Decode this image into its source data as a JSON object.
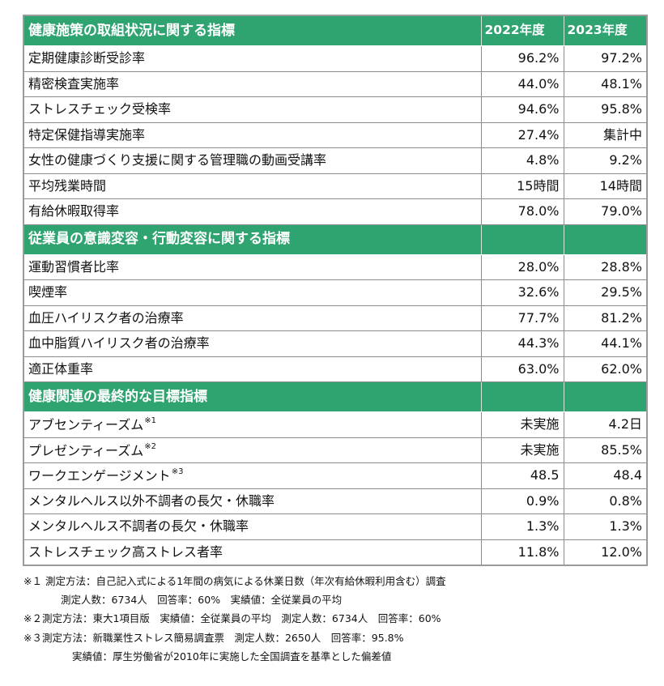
{
  "sections": [
    {
      "title": "健康施策の取組状況に関する指標",
      "col2": "2022年度",
      "col3": "2023年度",
      "rows": [
        {
          "label": "定期健康診断受診率",
          "sup": "",
          "v2022": "96.2%",
          "v2023": "97.2%"
        },
        {
          "label": "精密検査実施率",
          "sup": "",
          "v2022": "44.0%",
          "v2023": "48.1%"
        },
        {
          "label": "ストレスチェック受検率",
          "sup": "",
          "v2022": "94.6%",
          "v2023": "95.8%"
        },
        {
          "label": "特定保健指導実施率",
          "sup": "",
          "v2022": "27.4%",
          "v2023": "集計中"
        },
        {
          "label": "女性の健康づくり支援に関する管理職の動画受講率",
          "sup": "",
          "v2022": "4.8%",
          "v2023": "9.2%"
        },
        {
          "label": "平均残業時間",
          "sup": "",
          "v2022": "15時間",
          "v2023": "14時間"
        },
        {
          "label": "有給休暇取得率",
          "sup": "",
          "v2022": "78.0%",
          "v2023": "79.0%"
        }
      ]
    },
    {
      "title": "従業員の意識変容・行動変容に関する指標",
      "col2": "",
      "col3": "",
      "rows": [
        {
          "label": "運動習慣者比率",
          "sup": "",
          "v2022": "28.0%",
          "v2023": "28.8%"
        },
        {
          "label": "喫煙率",
          "sup": "",
          "v2022": "32.6%",
          "v2023": "29.5%"
        },
        {
          "label": "血圧ハイリスク者の治療率",
          "sup": "",
          "v2022": "77.7%",
          "v2023": "81.2%"
        },
        {
          "label": "血中脂質ハイリスク者の治療率",
          "sup": "",
          "v2022": "44.3%",
          "v2023": "44.1%"
        },
        {
          "label": "適正体重率",
          "sup": "",
          "v2022": "63.0%",
          "v2023": "62.0%"
        }
      ]
    },
    {
      "title": "健康関連の最終的な目標指標",
      "col2": "",
      "col3": "",
      "rows": [
        {
          "label": "アブセンティーズム",
          "sup": "※1",
          "v2022": "未実施",
          "v2023": "4.2日"
        },
        {
          "label": "プレゼンティーズム",
          "sup": "※2",
          "v2022": "未実施",
          "v2023": "85.5%"
        },
        {
          "label": "ワークエンゲージメント",
          "sup": "※3",
          "v2022": "48.5",
          "v2023": "48.4"
        },
        {
          "label": "メンタルヘルス以外不調者の長欠・休職率",
          "sup": "",
          "v2022": "0.9%",
          "v2023": "0.8%"
        },
        {
          "label": "メンタルヘルス不調者の長欠・休職率",
          "sup": "",
          "v2022": "1.3%",
          "v2023": "1.3%"
        },
        {
          "label": "ストレスチェック高ストレス者率",
          "sup": "",
          "v2022": "11.8%",
          "v2023": "12.0%"
        }
      ]
    }
  ],
  "notes": [
    {
      "text": "※１ 測定方法：自己記入式による1年間の病気による休業日数（年次有給休暇利用含む）調査",
      "indent": 0
    },
    {
      "text": "測定人数：6734人　回答率：60%　実績値：全従業員の平均",
      "indent": 1
    },
    {
      "text": "※２測定方法：東大1項目版　実績値：全従業員の平均　測定人数：6734人　回答率：60%",
      "indent": 0
    },
    {
      "text": "※３測定方法：新職業性ストレス簡易調査票　測定人数：2650人　回答率：95.8%",
      "indent": 0
    },
    {
      "text": "実績値：厚生労働省が2010年に実施した全国調査を基準とした偏差値",
      "indent": 2
    }
  ],
  "colors": {
    "header_green": "#2fa370",
    "border": "#8c8c8c"
  }
}
